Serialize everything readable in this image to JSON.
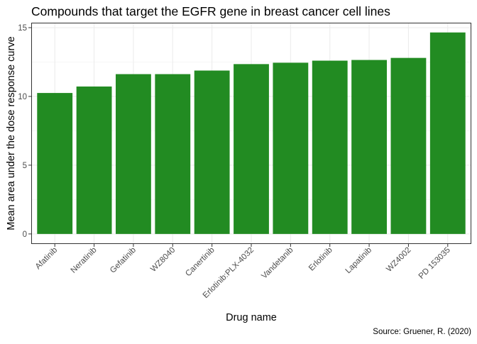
{
  "chart_data": {
    "type": "bar",
    "title": "Compounds that target the EGFR gene in breast cancer cell lines",
    "xlabel": "Drug name",
    "ylabel": "Mean area under the dose response curve",
    "caption": "Source: Gruener, R. (2020)",
    "categories": [
      "Afatinib",
      "Neratinib",
      "Gefatinib",
      "WZ8040",
      "Canertinib",
      "Erlotinib:PLX-4032",
      "Vandetanib",
      "Erlotinib",
      "Lapatinib",
      "WZ4002",
      "PD 153035"
    ],
    "values": [
      10.25,
      10.72,
      11.62,
      11.62,
      11.88,
      12.35,
      12.45,
      12.6,
      12.65,
      12.8,
      14.65
    ],
    "ylim": [
      -0.73,
      15.36
    ],
    "yticks": [
      0,
      5,
      10,
      15
    ],
    "bar_color": "#228B22",
    "grid": true,
    "legend": "none"
  }
}
